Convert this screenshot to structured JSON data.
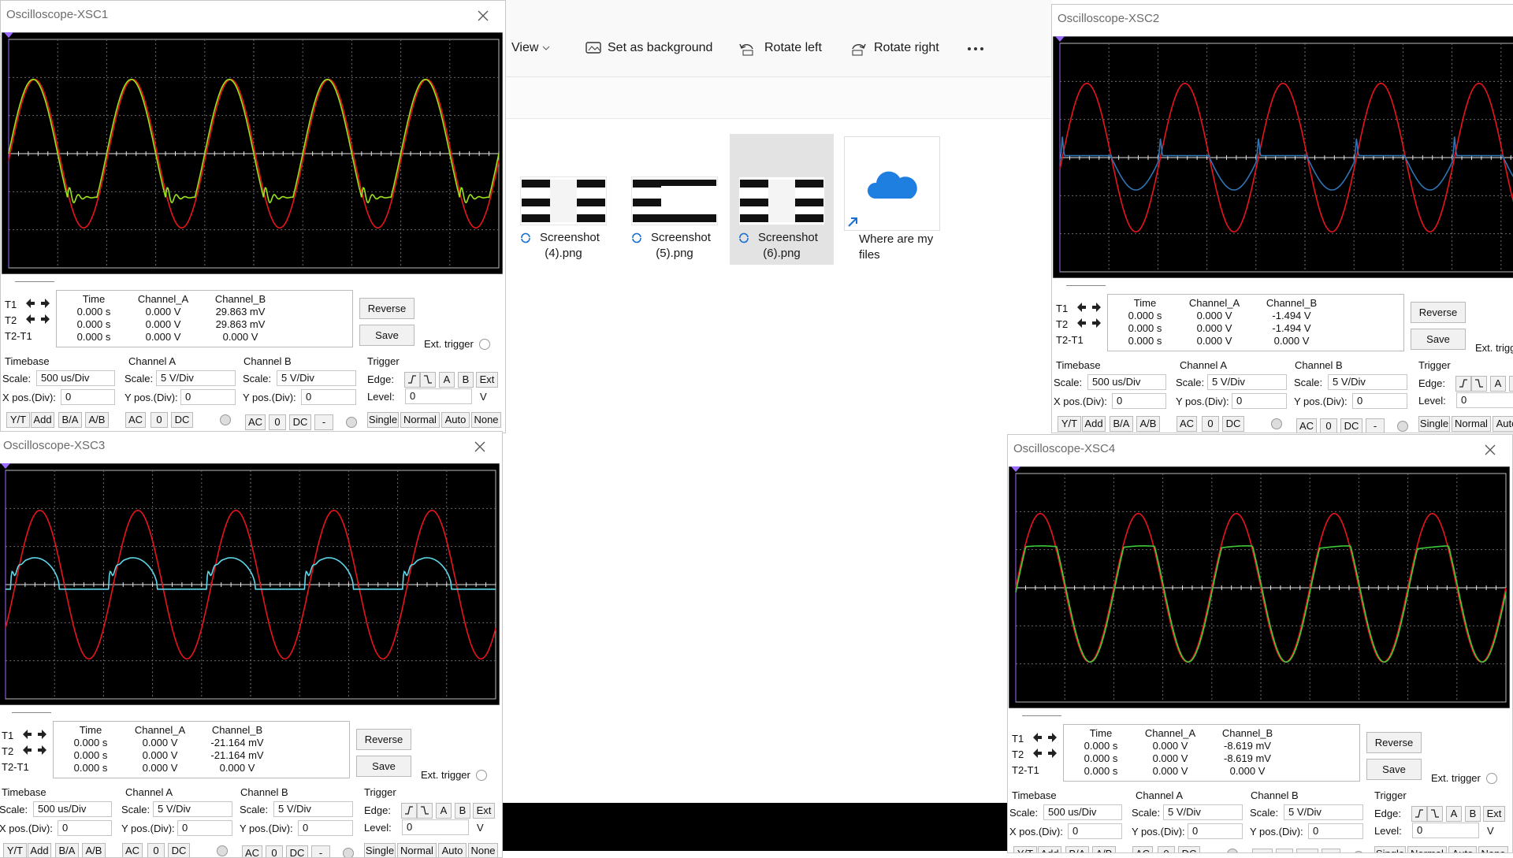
{
  "explorer": {
    "toolbar": {
      "view": "View",
      "set_background": "Set as background",
      "rotate_left": "Rotate left",
      "rotate_right": "Rotate right"
    },
    "files": [
      {
        "lines": [
          "Screenshot",
          "(4).png"
        ]
      },
      {
        "lines": [
          "Screenshot",
          "(5).png"
        ]
      },
      {
        "lines": [
          "Screenshot",
          "(6).png"
        ]
      },
      {
        "lines": [
          "Where are my",
          "files"
        ]
      }
    ]
  },
  "scope_labels": {
    "reverse": "Reverse",
    "save": "Save",
    "ext_trigger": "Ext. trigger",
    "timebase": "Timebase",
    "channel_a": "Channel A",
    "channel_b": "Channel B",
    "trigger": "Trigger",
    "scale": "Scale:",
    "x_pos": "X pos.(Div):",
    "y_pos": "Y pos.(Div):",
    "edge": "Edge:",
    "level": "Level:",
    "col_time": "Time",
    "col_a": "Channel_A",
    "col_b": "Channel_B",
    "t1": "T1",
    "t2": "T2",
    "t2t1": "T2-T1",
    "yt": "Y/T",
    "add": "Add",
    "ba": "B/A",
    "ab": "A/B",
    "ac": "AC",
    "zero": "0",
    "dc": "DC",
    "dash": "-",
    "a": "A",
    "b": "B",
    "ext": "Ext",
    "v": "V",
    "single": "Single",
    "normal": "Normal",
    "auto": "Auto",
    "none": "None"
  },
  "scopes": [
    {
      "title": "Oscilloscope-XSC1",
      "colors": [
        "#e8141c",
        "#9be31d"
      ],
      "readout": [
        [
          "0.000 s",
          "0.000 V",
          "29.863 mV"
        ],
        [
          "0.000 s",
          "0.000 V",
          "29.863 mV"
        ],
        [
          "0.000 s",
          "0.000 V",
          "0.000 V"
        ]
      ],
      "timebase_scale": "500 us/Div",
      "x_pos": "0",
      "a_scale": "5  V/Div",
      "a_y_pos": "0",
      "b_scale": "5  V/Div",
      "b_y_pos": "0",
      "level": "0"
    },
    {
      "title": "Oscilloscope-XSC2",
      "colors": [
        "#e8141c",
        "#2f74b5"
      ],
      "readout": [
        [
          "0.000 s",
          "0.000 V",
          "-1.494 V"
        ],
        [
          "0.000 s",
          "0.000 V",
          "-1.494 V"
        ],
        [
          "0.000 s",
          "0.000 V",
          "0.000 V"
        ]
      ],
      "timebase_scale": "500 us/Div",
      "x_pos": "0",
      "a_scale": "5  V/Div",
      "a_y_pos": "0",
      "b_scale": "5  V/Div",
      "b_y_pos": "0",
      "level": "0"
    },
    {
      "title": "Oscilloscope-XSC3",
      "colors": [
        "#e8141c",
        "#5fd6ea"
      ],
      "readout": [
        [
          "0.000 s",
          "0.000 V",
          "-21.164 mV"
        ],
        [
          "0.000 s",
          "0.000 V",
          "-21.164 mV"
        ],
        [
          "0.000 s",
          "0.000 V",
          "0.000 V"
        ]
      ],
      "timebase_scale": "500 us/Div",
      "x_pos": "0",
      "a_scale": "5  V/Div",
      "a_y_pos": "0",
      "b_scale": "5  V/Div",
      "b_y_pos": "0",
      "level": "0"
    },
    {
      "title": "Oscilloscope-XSC4",
      "colors": [
        "#e8141c",
        "#3ecb3a"
      ],
      "readout": [
        [
          "0.000 s",
          "0.000 V",
          "-8.619 mV"
        ],
        [
          "0.000 s",
          "0.000 V",
          "-8.619 mV"
        ],
        [
          "0.000 s",
          "0.000 V",
          "0.000 V"
        ]
      ],
      "timebase_scale": "500 us/Div",
      "x_pos": "0",
      "a_scale": "5  V/Div",
      "a_y_pos": "0",
      "b_scale": "5  V/Div",
      "b_y_pos": "0",
      "level": "0"
    }
  ]
}
